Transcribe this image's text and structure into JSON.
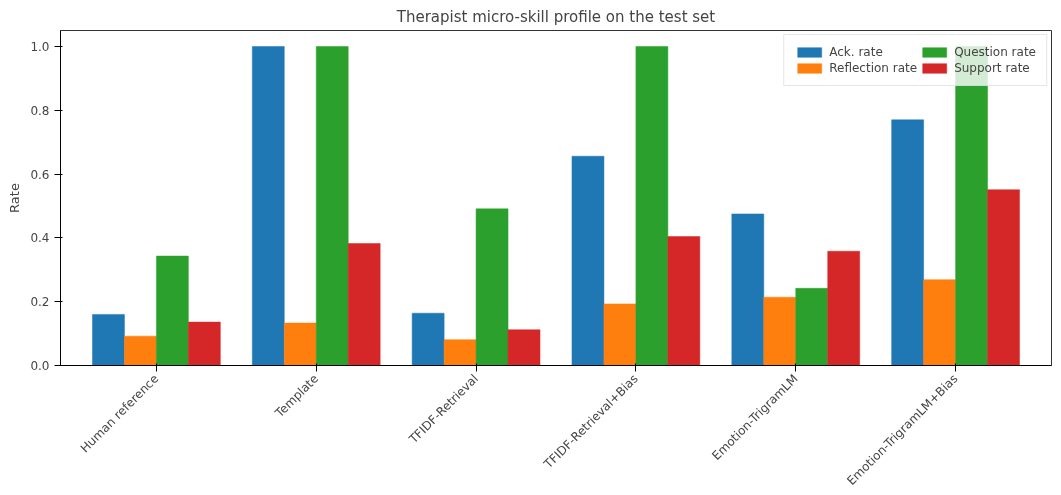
{
  "chart_data": {
    "type": "bar",
    "title": "Therapist micro-skill profile on the test set",
    "ylabel": "Rate",
    "categories": [
      "Human reference",
      "Template",
      "TFIDF-Retrieval",
      "TFIDF-Retrieval+Bias",
      "Emotion-TrigramLM",
      "Emotion-TrigramLM+Bias"
    ],
    "series": [
      {
        "name": "Ack. rate",
        "color": "#1f77b4",
        "values": [
          0.16,
          1.0,
          0.164,
          0.656,
          0.475,
          0.77
        ]
      },
      {
        "name": "Reflection rate",
        "color": "#ff7f0e",
        "values": [
          0.092,
          0.133,
          0.081,
          0.193,
          0.214,
          0.269
        ]
      },
      {
        "name": "Question rate",
        "color": "#2ca02c",
        "values": [
          0.343,
          1.0,
          0.491,
          1.0,
          0.242,
          1.0
        ]
      },
      {
        "name": "Support rate",
        "color": "#d62728",
        "values": [
          0.136,
          0.382,
          0.112,
          0.404,
          0.358,
          0.551
        ]
      }
    ],
    "ylim": [
      0,
      1.05
    ],
    "yticks": [
      {
        "value": 0,
        "label": "0.0"
      },
      0.2,
      0.4,
      0.6,
      0.8,
      {
        "value": 1,
        "label": "1.0"
      }
    ],
    "grid": false,
    "legend": "top right"
  }
}
